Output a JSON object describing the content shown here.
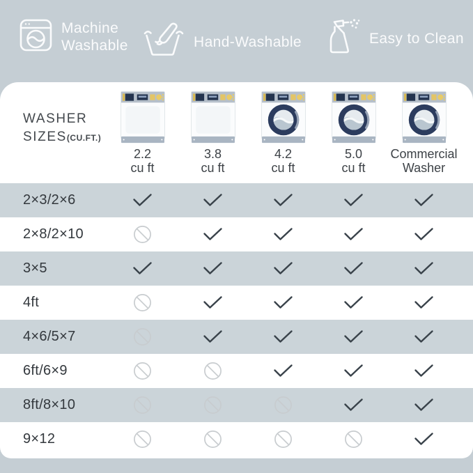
{
  "header": {
    "badges": [
      {
        "icon": "washing-machine-icon",
        "label": "Machine\nWashable"
      },
      {
        "icon": "hand-wash-icon",
        "label": "Hand-Washable"
      },
      {
        "icon": "spray-bottle-icon",
        "label": "Easy to Clean"
      }
    ]
  },
  "table": {
    "corner": {
      "line1": "WASHER",
      "line2": "SIZES",
      "suffix": "(CU.FT.)"
    },
    "columns": [
      {
        "label": "2.2\ncu ft",
        "washer": "plain"
      },
      {
        "label": "3.8\ncu ft",
        "washer": "plain"
      },
      {
        "label": "4.2\ncu ft",
        "washer": "window"
      },
      {
        "label": "5.0\ncu ft",
        "washer": "window"
      },
      {
        "label": "Commercial\nWasher",
        "washer": "window"
      }
    ],
    "rows": [
      {
        "label": "2×3/2×6",
        "cells": [
          "yes",
          "yes",
          "yes",
          "yes",
          "yes"
        ]
      },
      {
        "label": "2×8/2×10",
        "cells": [
          "no",
          "yes",
          "yes",
          "yes",
          "yes"
        ]
      },
      {
        "label": "3×5",
        "cells": [
          "yes",
          "yes",
          "yes",
          "yes",
          "yes"
        ]
      },
      {
        "label": "4ft",
        "cells": [
          "no",
          "yes",
          "yes",
          "yes",
          "yes"
        ]
      },
      {
        "label": "4×6/5×7",
        "cells": [
          "no",
          "yes",
          "yes",
          "yes",
          "yes"
        ]
      },
      {
        "label": "6ft/6×9",
        "cells": [
          "no",
          "no",
          "yes",
          "yes",
          "yes"
        ]
      },
      {
        "label": "8ft/8×10",
        "cells": [
          "no",
          "no",
          "no",
          "yes",
          "yes"
        ]
      },
      {
        "label": "9×12",
        "cells": [
          "no",
          "no",
          "no",
          "no",
          "yes"
        ]
      }
    ],
    "legend": {
      "yes": "check-icon",
      "no": "not-suitable-icon"
    }
  },
  "chart_data": {
    "type": "table",
    "title": "WASHER SIZES (CU.FT.)",
    "columns": [
      "2.2 cu ft",
      "3.8 cu ft",
      "4.2 cu ft",
      "5.0 cu ft",
      "Commercial Washer"
    ],
    "row_labels": [
      "2×3/2×6",
      "2×8/2×10",
      "3×5",
      "4ft",
      "4×6/5×7",
      "6ft/6×9",
      "8ft/8×10",
      "9×12"
    ],
    "values": [
      [
        "yes",
        "yes",
        "yes",
        "yes",
        "yes"
      ],
      [
        "no",
        "yes",
        "yes",
        "yes",
        "yes"
      ],
      [
        "yes",
        "yes",
        "yes",
        "yes",
        "yes"
      ],
      [
        "no",
        "yes",
        "yes",
        "yes",
        "yes"
      ],
      [
        "no",
        "yes",
        "yes",
        "yes",
        "yes"
      ],
      [
        "no",
        "no",
        "yes",
        "yes",
        "yes"
      ],
      [
        "no",
        "no",
        "no",
        "yes",
        "yes"
      ],
      [
        "no",
        "no",
        "no",
        "no",
        "yes"
      ]
    ]
  },
  "colors": {
    "background": "#c5ced4",
    "stripe_row": "#cbd4d9",
    "card": "#ffffff",
    "check": "#39424a",
    "not_suitable": "#c8cccf",
    "text_dark": "#33383d",
    "washer_navy": "#2c3c5e",
    "washer_yellow": "#e3c566",
    "washer_panel": "#b5bfca",
    "icon_white": "#fafbfc"
  }
}
